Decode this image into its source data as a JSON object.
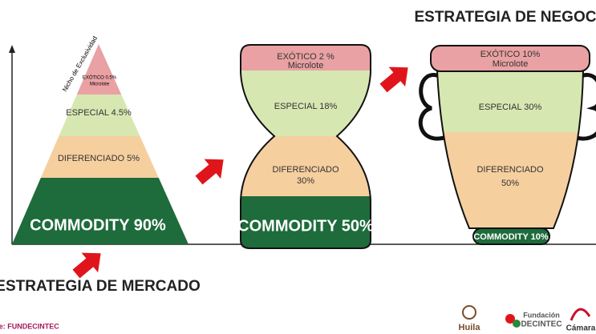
{
  "header": {
    "business_title": "ESTRATEGIA DE NEGOCIO",
    "market_title": "ESTRATEGIA DE MERCADO"
  },
  "pyramid": {
    "niche": "Nicho de Exclusividad",
    "layers": [
      "EXÓTICO 0.5%",
      "Microlote",
      "ESPECIAL 4.5%",
      "DIFERENCIADO 5%",
      "COMMODITY 90%"
    ]
  },
  "hourglass": {
    "layers": [
      "EXÓTICO 2 %",
      "Microlote",
      "ESPECIAL 18%",
      "DIFERENCIADO",
      "30%",
      "COMMODITY 50%"
    ]
  },
  "cup": {
    "layers": [
      "EXÓTICO 10%",
      "Microlote",
      "ESPECIAL 30%",
      "DIFERENCIADO",
      "50%",
      "COMMODITY 10%"
    ]
  },
  "footer": {
    "source": "Fuente: FUNDECINTEC",
    "logos": [
      "Huila",
      "Fundación",
      "DECINTEC",
      "Cámara"
    ]
  }
}
